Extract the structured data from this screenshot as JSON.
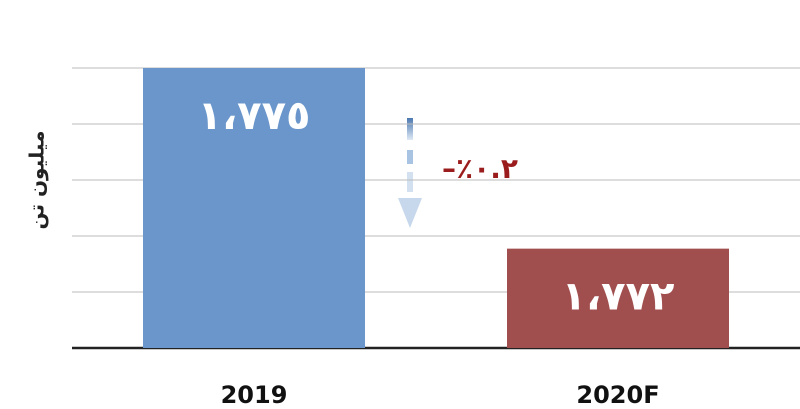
{
  "chart_data": {
    "type": "bar",
    "ylabel": "میلیون تن",
    "categories": [
      "2019",
      "2020F"
    ],
    "values": [
      1775,
      1772
    ],
    "value_labels": [
      "١،٧٧٥",
      "١،٧٧٢"
    ],
    "colors": [
      "#6a96cb",
      "#a14f4e"
    ],
    "annotation": "–٪۰.۲",
    "ylim": [
      1770.35,
      1775.0
    ],
    "yticks": [
      1770.35,
      1771.28,
      1772.21,
      1773.14,
      1774.07,
      1775.0
    ],
    "grid": true
  }
}
